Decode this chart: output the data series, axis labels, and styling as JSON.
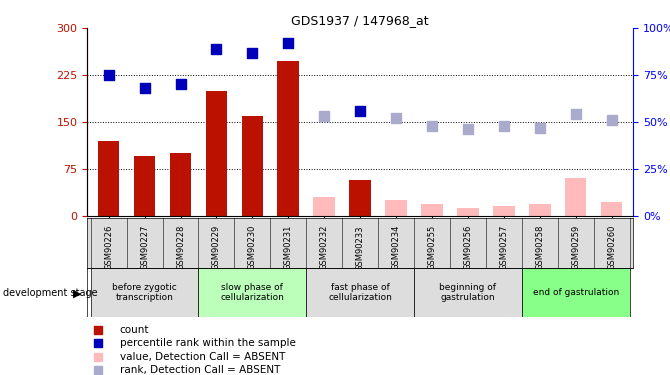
{
  "title": "GDS1937 / 147968_at",
  "samples": [
    "GSM90226",
    "GSM90227",
    "GSM90228",
    "GSM90229",
    "GSM90230",
    "GSM90231",
    "GSM90232",
    "GSM90233",
    "GSM90234",
    "GSM90255",
    "GSM90256",
    "GSM90257",
    "GSM90258",
    "GSM90259",
    "GSM90260"
  ],
  "count_present": [
    120,
    95,
    100,
    200,
    160,
    247,
    null,
    57,
    null,
    null,
    null,
    null,
    null,
    null,
    null
  ],
  "count_absent": [
    null,
    null,
    null,
    null,
    null,
    null,
    30,
    null,
    25,
    18,
    13,
    15,
    18,
    60,
    22
  ],
  "rank_present": [
    75,
    68,
    70,
    89,
    87,
    92,
    null,
    56,
    null,
    null,
    null,
    null,
    null,
    null,
    null
  ],
  "rank_absent": [
    null,
    null,
    null,
    null,
    null,
    null,
    53,
    null,
    52,
    48,
    46,
    48,
    47,
    54,
    51
  ],
  "ylim_left": [
    0,
    300
  ],
  "ylim_right": [
    0,
    100
  ],
  "yticks_left": [
    0,
    75,
    150,
    225,
    300
  ],
  "yticks_right": [
    0,
    25,
    50,
    75,
    100
  ],
  "color_bar_present": "#bb1100",
  "color_bar_absent": "#ffbbbb",
  "color_rank_present": "#0000bb",
  "color_rank_absent": "#aaaacc",
  "stage_groups": [
    {
      "label": "before zygotic\ntranscription",
      "start": 0,
      "end": 2,
      "color": "#dddddd"
    },
    {
      "label": "slow phase of\ncellularization",
      "start": 3,
      "end": 5,
      "color": "#bbffbb"
    },
    {
      "label": "fast phase of\ncellularization",
      "start": 6,
      "end": 8,
      "color": "#dddddd"
    },
    {
      "label": "beginning of\ngastrulation",
      "start": 9,
      "end": 11,
      "color": "#dddddd"
    },
    {
      "label": "end of gastrulation",
      "start": 12,
      "end": 14,
      "color": "#88ff88"
    }
  ],
  "legend_items": [
    {
      "label": "count",
      "color": "#bb1100"
    },
    {
      "label": "percentile rank within the sample",
      "color": "#0000bb"
    },
    {
      "label": "value, Detection Call = ABSENT",
      "color": "#ffbbbb"
    },
    {
      "label": "rank, Detection Call = ABSENT",
      "color": "#aaaacc"
    }
  ]
}
